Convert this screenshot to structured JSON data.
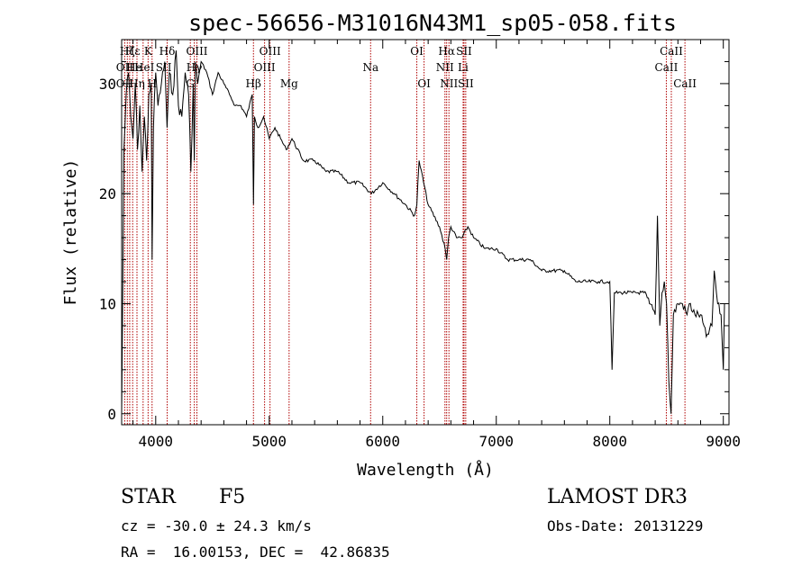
{
  "chart_data": {
    "type": "line",
    "title": "spec-56656-M31016N43M1_sp05-058.fits",
    "xlabel": "Wavelength (Å)",
    "ylabel": "Flux (relative)",
    "xlim": [
      3700,
      9050
    ],
    "ylim": [
      -1,
      34
    ],
    "xticks": [
      4000,
      5000,
      6000,
      7000,
      8000,
      9000
    ],
    "yticks": [
      0,
      10,
      20,
      30
    ],
    "series": [
      {
        "name": "flux",
        "x": [
          3700,
          3720,
          3740,
          3760,
          3780,
          3800,
          3820,
          3840,
          3860,
          3880,
          3900,
          3920,
          3940,
          3960,
          3968,
          3980,
          4000,
          4020,
          4050,
          4080,
          4100,
          4120,
          4150,
          4180,
          4200,
          4230,
          4260,
          4290,
          4310,
          4330,
          4340,
          4350,
          4370,
          4400,
          4450,
          4500,
          4550,
          4600,
          4650,
          4700,
          4750,
          4800,
          4850,
          4861,
          4870,
          4900,
          4950,
          5000,
          5050,
          5100,
          5150,
          5200,
          5300,
          5400,
          5500,
          5600,
          5700,
          5800,
          5900,
          6000,
          6100,
          6200,
          6280,
          6300,
          6320,
          6400,
          6500,
          6550,
          6563,
          6580,
          6600,
          6650,
          6700,
          6750,
          6800,
          6900,
          7000,
          7100,
          7200,
          7300,
          7400,
          7500,
          7600,
          7700,
          7800,
          7900,
          8000,
          8020,
          8040,
          8100,
          8200,
          8300,
          8350,
          8400,
          8420,
          8440,
          8460,
          8480,
          8500,
          8520,
          8540,
          8560,
          8600,
          8640,
          8680,
          8700,
          8750,
          8800,
          8850,
          8900,
          8920,
          8950,
          8980,
          9000,
          9010
        ],
        "y": [
          0,
          24,
          29,
          31,
          27,
          25,
          30,
          24,
          28,
          22,
          27,
          23,
          29,
          30,
          14,
          26,
          31,
          28,
          30,
          32,
          26,
          31,
          29,
          33,
          28,
          27,
          31,
          29,
          22,
          30,
          23,
          32,
          30,
          32,
          31,
          29,
          31,
          30,
          29,
          28,
          28,
          27,
          29,
          19,
          27,
          26,
          27,
          25,
          26,
          25,
          24,
          25,
          23,
          23,
          22,
          22,
          21,
          21,
          20,
          21,
          20,
          19,
          18,
          19,
          23,
          19,
          17,
          15,
          14,
          16,
          17,
          16,
          16,
          17,
          16,
          15,
          15,
          14,
          14,
          14,
          13,
          13,
          13,
          12,
          12,
          12,
          12,
          4,
          11,
          11,
          11,
          11,
          10,
          9,
          18,
          8,
          11,
          12,
          10,
          3,
          0,
          9,
          10,
          10,
          9,
          10,
          9,
          9,
          7,
          8,
          13,
          10,
          9,
          4,
          10
        ]
      }
    ],
    "annotations": [
      {
        "label": "Hζ",
        "x": 3750,
        "row": 1
      },
      {
        "label": "OII",
        "x": 3727,
        "row": 2
      },
      {
        "label": "OII",
        "x": 3727,
        "row": 3
      },
      {
        "label": "Hε",
        "x": 3797,
        "row": 1
      },
      {
        "label": "He",
        "x": 3810,
        "row": 2
      },
      {
        "label": "Hη",
        "x": 3835,
        "row": 3
      },
      {
        "label": "K",
        "x": 3933,
        "row": 1
      },
      {
        "label": "HeI",
        "x": 3900,
        "row": 2
      },
      {
        "label": "H",
        "x": 3968,
        "row": 3
      },
      {
        "label": "Hδ",
        "x": 4101,
        "row": 1
      },
      {
        "label": "SII",
        "x": 4070,
        "row": 2
      },
      {
        "label": "OIII",
        "x": 4363,
        "row": 1
      },
      {
        "label": "Hγ",
        "x": 4340,
        "row": 2
      },
      {
        "label": "G",
        "x": 4305,
        "row": 3
      },
      {
        "label": "Hβ",
        "x": 4861,
        "row": 3
      },
      {
        "label": "OIII",
        "x": 5007,
        "row": 1
      },
      {
        "label": "OIII",
        "x": 4959,
        "row": 2
      },
      {
        "label": "Mg",
        "x": 5175,
        "row": 3
      },
      {
        "label": "Na",
        "x": 5893,
        "row": 2
      },
      {
        "label": "OI",
        "x": 6300,
        "row": 1
      },
      {
        "label": "OI",
        "x": 6364,
        "row": 3
      },
      {
        "label": "Hα",
        "x": 6563,
        "row": 1
      },
      {
        "label": "NII",
        "x": 6548,
        "row": 2
      },
      {
        "label": "NII",
        "x": 6583,
        "row": 3
      },
      {
        "label": "SII",
        "x": 6716,
        "row": 1
      },
      {
        "label": "Li",
        "x": 6708,
        "row": 2
      },
      {
        "label": "SII",
        "x": 6731,
        "row": 3
      },
      {
        "label": "CaII",
        "x": 8542,
        "row": 1
      },
      {
        "label": "CaII",
        "x": 8498,
        "row": 2
      },
      {
        "label": "CaII",
        "x": 8662,
        "row": 3
      }
    ],
    "line_markers": [
      3727,
      3750,
      3771,
      3797,
      3835,
      3889,
      3933,
      3968,
      4101,
      4305,
      4340,
      4363,
      4861,
      4959,
      5007,
      5175,
      5893,
      6300,
      6364,
      6548,
      6563,
      6583,
      6708,
      6716,
      6731,
      8498,
      8542,
      8662
    ]
  },
  "info": {
    "class": "STAR",
    "subclass": "F5",
    "survey": "LAMOST DR3",
    "cz": "cz = -30.0 ± 24.3 km/s",
    "obs_date": "Obs-Date: 20131229",
    "coords": "RA =  16.00153, DEC =  42.86835"
  },
  "colors": {
    "line": "#000000",
    "marker": "#b00000",
    "background": "#ffffff"
  }
}
